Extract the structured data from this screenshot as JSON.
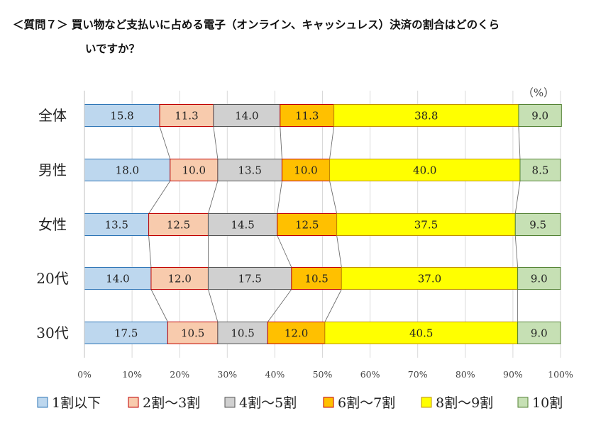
{
  "title": {
    "line1": "＜質問７＞ 買い物など支払いに占める電子（オンライン、キャッシュレス）決済の割合はどのくら",
    "line2": "いですか？"
  },
  "chart_data": {
    "type": "bar",
    "orientation": "horizontal",
    "stacked": true,
    "percent_stacked": true,
    "unit_label": "（%）",
    "xlim": [
      0,
      100
    ],
    "x_ticks": [
      "0%",
      "10%",
      "20%",
      "30%",
      "40%",
      "50%",
      "60%",
      "70%",
      "80%",
      "90%",
      "100%"
    ],
    "grid": true,
    "legend_position": "bottom",
    "categories": [
      "全体",
      "男性",
      "女性",
      "20代",
      "30代"
    ],
    "series": [
      {
        "name": "1割以下",
        "color": "#BDD7EE",
        "border": "#2E75B6",
        "values": [
          15.8,
          18.0,
          13.5,
          14.0,
          17.5
        ],
        "labels": [
          "15.8",
          "18.0",
          "13.5",
          "14.0",
          "17.5"
        ]
      },
      {
        "name": "2割～3割",
        "color": "#F8CBAD",
        "border": "#C00000",
        "values": [
          11.3,
          10.0,
          12.5,
          12.0,
          10.5
        ],
        "labels": [
          "11.3",
          "10.0",
          "12.5",
          "12.0",
          "10.5"
        ]
      },
      {
        "name": "4割～5割",
        "color": "#D0D0D0",
        "border": "#555555",
        "values": [
          14.0,
          13.5,
          14.5,
          17.5,
          10.5
        ],
        "labels": [
          "14.0",
          "13.5",
          "14.5",
          "17.5",
          "10.5"
        ]
      },
      {
        "name": "6割～7割",
        "color": "#FFC000",
        "border": "#C00000",
        "values": [
          11.3,
          10.0,
          12.5,
          10.5,
          12.0
        ],
        "labels": [
          "11.3",
          "10.0",
          "12.5",
          "10.5",
          "12.0"
        ]
      },
      {
        "name": "8割～9割",
        "color": "#FFFF00",
        "border": "#BF9000",
        "values": [
          38.8,
          40.0,
          37.5,
          37.0,
          40.5
        ],
        "labels": [
          "38.8",
          "40.0",
          "37.5",
          "37.0",
          "40.5"
        ]
      },
      {
        "name": "10割",
        "color": "#C6E0B4",
        "border": "#548235",
        "values": [
          9.0,
          8.5,
          9.5,
          9.0,
          9.0
        ],
        "labels": [
          "9.0",
          "8.5",
          "9.5",
          "9.0",
          "9.0"
        ]
      }
    ]
  }
}
